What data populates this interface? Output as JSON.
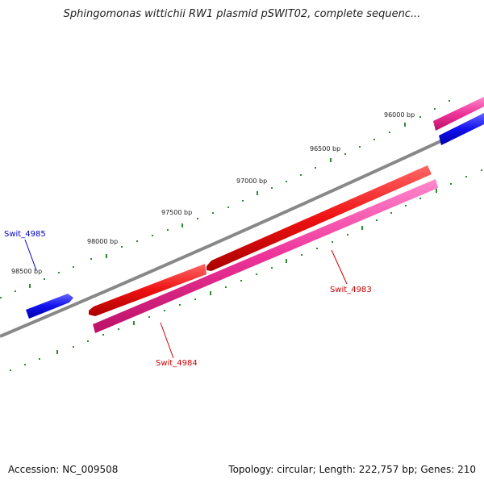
{
  "title": "Sphingomonas wittichii RW1 plasmid pSWIT02, complete sequenc...",
  "footer": {
    "accession": "Accession: NC_009508",
    "summary": "Topology: circular; Length: 222,757 bp; Genes: 210"
  },
  "ticks": [
    "96000 bp",
    "96500 bp",
    "97000 bp",
    "97500 bp",
    "98000 bp",
    "98500 bp"
  ],
  "genes": [
    {
      "name": "Swit_4985",
      "color": "#0000cc"
    },
    {
      "name": "Swit_4984",
      "color": "#cc0000"
    },
    {
      "name": "Swit_4983",
      "color": "#cc0000"
    }
  ],
  "colors": {
    "backbone": "#888888",
    "tick": "#2e8b2e",
    "feature_red": "#ee1111",
    "feature_pink": "#ee3399",
    "feature_blue": "#1111ee"
  }
}
